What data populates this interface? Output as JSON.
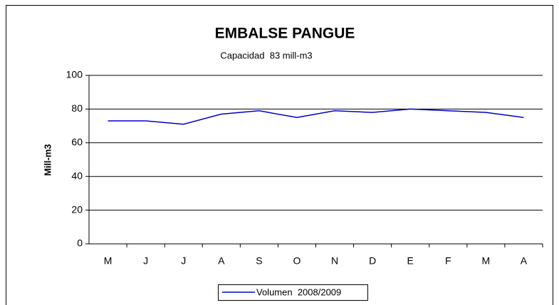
{
  "chart_data": {
    "type": "line",
    "title": "EMBALSE PANGUE",
    "subtitle": "Capacidad  83 mill-m3",
    "y_label": "Mill-m3",
    "categories": [
      "M",
      "J",
      "J",
      "A",
      "S",
      "O",
      "N",
      "D",
      "E",
      "F",
      "M",
      "A"
    ],
    "series": [
      {
        "name": "Volumen  2008/2009",
        "color": "#0000cc",
        "values": [
          73,
          73,
          71,
          77,
          79,
          75,
          79,
          78,
          80,
          79,
          78,
          75
        ]
      }
    ],
    "ylim": [
      0,
      100
    ],
    "yticks": [
      0,
      20,
      40,
      60,
      80,
      100
    ],
    "grid": true,
    "legend": "bottom"
  }
}
